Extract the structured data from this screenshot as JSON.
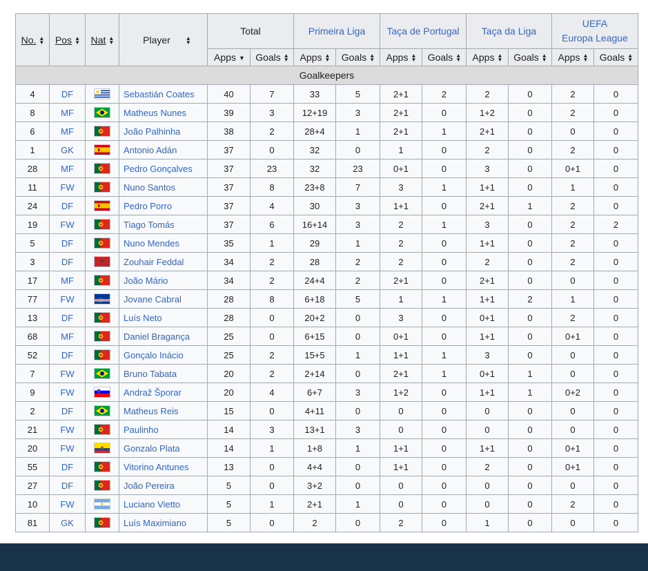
{
  "colors": {
    "header_bg": "#eaecf0",
    "cell_bg": "#f8f9fa",
    "section_bg": "#dcdcdc",
    "link": "#3366cc",
    "footer_bar": "#18324a"
  },
  "header": {
    "no": "No.",
    "pos": "Pos",
    "nat": "Nat",
    "player": "Player",
    "total": "Total",
    "comps": [
      "Primeira Liga",
      "Taça de Portugal",
      "Taça da Liga",
      "UEFA",
      "Europa League"
    ],
    "apps": "Apps",
    "goals": "Goals"
  },
  "section": "Goalkeepers",
  "rows": [
    {
      "no": "4",
      "pos": "DF",
      "flag": "URU",
      "player": "Sebastián Coates",
      "t_apps": "40",
      "t_goals": "7",
      "l_apps": "33",
      "l_goals": "5",
      "c_apps": "2+1",
      "c_goals": "2",
      "tl_apps": "2",
      "tl_goals": "0",
      "e_apps": "2",
      "e_goals": "0"
    },
    {
      "no": "8",
      "pos": "MF",
      "flag": "BRA",
      "player": "Matheus Nunes",
      "t_apps": "39",
      "t_goals": "3",
      "l_apps": "12+19",
      "l_goals": "3",
      "c_apps": "2+1",
      "c_goals": "0",
      "tl_apps": "1+2",
      "tl_goals": "0",
      "e_apps": "2",
      "e_goals": "0"
    },
    {
      "no": "6",
      "pos": "MF",
      "flag": "POR",
      "player": "João Palhinha",
      "t_apps": "38",
      "t_goals": "2",
      "l_apps": "28+4",
      "l_goals": "1",
      "c_apps": "2+1",
      "c_goals": "1",
      "tl_apps": "2+1",
      "tl_goals": "0",
      "e_apps": "0",
      "e_goals": "0"
    },
    {
      "no": "1",
      "pos": "GK",
      "flag": "ESP",
      "player": "Antonio Adán",
      "t_apps": "37",
      "t_goals": "0",
      "l_apps": "32",
      "l_goals": "0",
      "c_apps": "1",
      "c_goals": "0",
      "tl_apps": "2",
      "tl_goals": "0",
      "e_apps": "2",
      "e_goals": "0"
    },
    {
      "no": "28",
      "pos": "MF",
      "flag": "POR",
      "player": "Pedro Gonçalves",
      "t_apps": "37",
      "t_goals": "23",
      "l_apps": "32",
      "l_goals": "23",
      "c_apps": "0+1",
      "c_goals": "0",
      "tl_apps": "3",
      "tl_goals": "0",
      "e_apps": "0+1",
      "e_goals": "0"
    },
    {
      "no": "11",
      "pos": "FW",
      "flag": "POR",
      "player": "Nuno Santos",
      "t_apps": "37",
      "t_goals": "8",
      "l_apps": "23+8",
      "l_goals": "7",
      "c_apps": "3",
      "c_goals": "1",
      "tl_apps": "1+1",
      "tl_goals": "0",
      "e_apps": "1",
      "e_goals": "0"
    },
    {
      "no": "24",
      "pos": "DF",
      "flag": "ESP",
      "player": "Pedro Porro",
      "t_apps": "37",
      "t_goals": "4",
      "l_apps": "30",
      "l_goals": "3",
      "c_apps": "1+1",
      "c_goals": "0",
      "tl_apps": "2+1",
      "tl_goals": "1",
      "e_apps": "2",
      "e_goals": "0"
    },
    {
      "no": "19",
      "pos": "FW",
      "flag": "POR",
      "player": "Tiago Tomás",
      "t_apps": "37",
      "t_goals": "6",
      "l_apps": "16+14",
      "l_goals": "3",
      "c_apps": "2",
      "c_goals": "1",
      "tl_apps": "3",
      "tl_goals": "0",
      "e_apps": "2",
      "e_goals": "2"
    },
    {
      "no": "5",
      "pos": "DF",
      "flag": "POR",
      "player": "Nuno Mendes",
      "t_apps": "35",
      "t_goals": "1",
      "l_apps": "29",
      "l_goals": "1",
      "c_apps": "2",
      "c_goals": "0",
      "tl_apps": "1+1",
      "tl_goals": "0",
      "e_apps": "2",
      "e_goals": "0"
    },
    {
      "no": "3",
      "pos": "DF",
      "flag": "MAR",
      "player": "Zouhair Feddal",
      "t_apps": "34",
      "t_goals": "2",
      "l_apps": "28",
      "l_goals": "2",
      "c_apps": "2",
      "c_goals": "0",
      "tl_apps": "2",
      "tl_goals": "0",
      "e_apps": "2",
      "e_goals": "0"
    },
    {
      "no": "17",
      "pos": "MF",
      "flag": "POR",
      "player": "João Mário",
      "t_apps": "34",
      "t_goals": "2",
      "l_apps": "24+4",
      "l_goals": "2",
      "c_apps": "2+1",
      "c_goals": "0",
      "tl_apps": "2+1",
      "tl_goals": "0",
      "e_apps": "0",
      "e_goals": "0"
    },
    {
      "no": "77",
      "pos": "FW",
      "flag": "CPV",
      "player": "Jovane Cabral",
      "t_apps": "28",
      "t_goals": "8",
      "l_apps": "6+18",
      "l_goals": "5",
      "c_apps": "1",
      "c_goals": "1",
      "tl_apps": "1+1",
      "tl_goals": "2",
      "e_apps": "1",
      "e_goals": "0"
    },
    {
      "no": "13",
      "pos": "DF",
      "flag": "POR",
      "player": "Luís Neto",
      "t_apps": "28",
      "t_goals": "0",
      "l_apps": "20+2",
      "l_goals": "0",
      "c_apps": "3",
      "c_goals": "0",
      "tl_apps": "0+1",
      "tl_goals": "0",
      "e_apps": "2",
      "e_goals": "0"
    },
    {
      "no": "68",
      "pos": "MF",
      "flag": "POR",
      "player": "Daniel Bragança",
      "t_apps": "25",
      "t_goals": "0",
      "l_apps": "6+15",
      "l_goals": "0",
      "c_apps": "0+1",
      "c_goals": "0",
      "tl_apps": "1+1",
      "tl_goals": "0",
      "e_apps": "0+1",
      "e_goals": "0"
    },
    {
      "no": "52",
      "pos": "DF",
      "flag": "POR",
      "player": "Gonçalo Inácio",
      "t_apps": "25",
      "t_goals": "2",
      "l_apps": "15+5",
      "l_goals": "1",
      "c_apps": "1+1",
      "c_goals": "1",
      "tl_apps": "3",
      "tl_goals": "0",
      "e_apps": "0",
      "e_goals": "0"
    },
    {
      "no": "7",
      "pos": "FW",
      "flag": "BRA",
      "player": "Bruno Tabata",
      "t_apps": "20",
      "t_goals": "2",
      "l_apps": "2+14",
      "l_goals": "0",
      "c_apps": "2+1",
      "c_goals": "1",
      "tl_apps": "0+1",
      "tl_goals": "1",
      "e_apps": "0",
      "e_goals": "0"
    },
    {
      "no": "9",
      "pos": "FW",
      "flag": "SVN",
      "player": "Andraž Šporar",
      "t_apps": "20",
      "t_goals": "4",
      "l_apps": "6+7",
      "l_goals": "3",
      "c_apps": "1+2",
      "c_goals": "0",
      "tl_apps": "1+1",
      "tl_goals": "1",
      "e_apps": "0+2",
      "e_goals": "0"
    },
    {
      "no": "2",
      "pos": "DF",
      "flag": "BRA",
      "player": "Matheus Reis",
      "t_apps": "15",
      "t_goals": "0",
      "l_apps": "4+11",
      "l_goals": "0",
      "c_apps": "0",
      "c_goals": "0",
      "tl_apps": "0",
      "tl_goals": "0",
      "e_apps": "0",
      "e_goals": "0"
    },
    {
      "no": "21",
      "pos": "FW",
      "flag": "POR",
      "player": "Paulinho",
      "t_apps": "14",
      "t_goals": "3",
      "l_apps": "13+1",
      "l_goals": "3",
      "c_apps": "0",
      "c_goals": "0",
      "tl_apps": "0",
      "tl_goals": "0",
      "e_apps": "0",
      "e_goals": "0"
    },
    {
      "no": "20",
      "pos": "FW",
      "flag": "ECU",
      "player": "Gonzalo Plata",
      "t_apps": "14",
      "t_goals": "1",
      "l_apps": "1+8",
      "l_goals": "1",
      "c_apps": "1+1",
      "c_goals": "0",
      "tl_apps": "1+1",
      "tl_goals": "0",
      "e_apps": "0+1",
      "e_goals": "0"
    },
    {
      "no": "55",
      "pos": "DF",
      "flag": "POR",
      "player": "Vitorino Antunes",
      "t_apps": "13",
      "t_goals": "0",
      "l_apps": "4+4",
      "l_goals": "0",
      "c_apps": "1+1",
      "c_goals": "0",
      "tl_apps": "2",
      "tl_goals": "0",
      "e_apps": "0+1",
      "e_goals": "0"
    },
    {
      "no": "27",
      "pos": "DF",
      "flag": "POR",
      "player": "João Pereira",
      "t_apps": "5",
      "t_goals": "0",
      "l_apps": "3+2",
      "l_goals": "0",
      "c_apps": "0",
      "c_goals": "0",
      "tl_apps": "0",
      "tl_goals": "0",
      "e_apps": "0",
      "e_goals": "0"
    },
    {
      "no": "10",
      "pos": "FW",
      "flag": "ARG",
      "player": "Luciano Vietto",
      "t_apps": "5",
      "t_goals": "1",
      "l_apps": "2+1",
      "l_goals": "1",
      "c_apps": "0",
      "c_goals": "0",
      "tl_apps": "0",
      "tl_goals": "0",
      "e_apps": "2",
      "e_goals": "0"
    },
    {
      "no": "81",
      "pos": "GK",
      "flag": "POR",
      "player": "Luís Maximiano",
      "t_apps": "5",
      "t_goals": "0",
      "l_apps": "2",
      "l_goals": "0",
      "c_apps": "2",
      "c_goals": "0",
      "tl_apps": "1",
      "tl_goals": "0",
      "e_apps": "0",
      "e_goals": "0"
    }
  ]
}
